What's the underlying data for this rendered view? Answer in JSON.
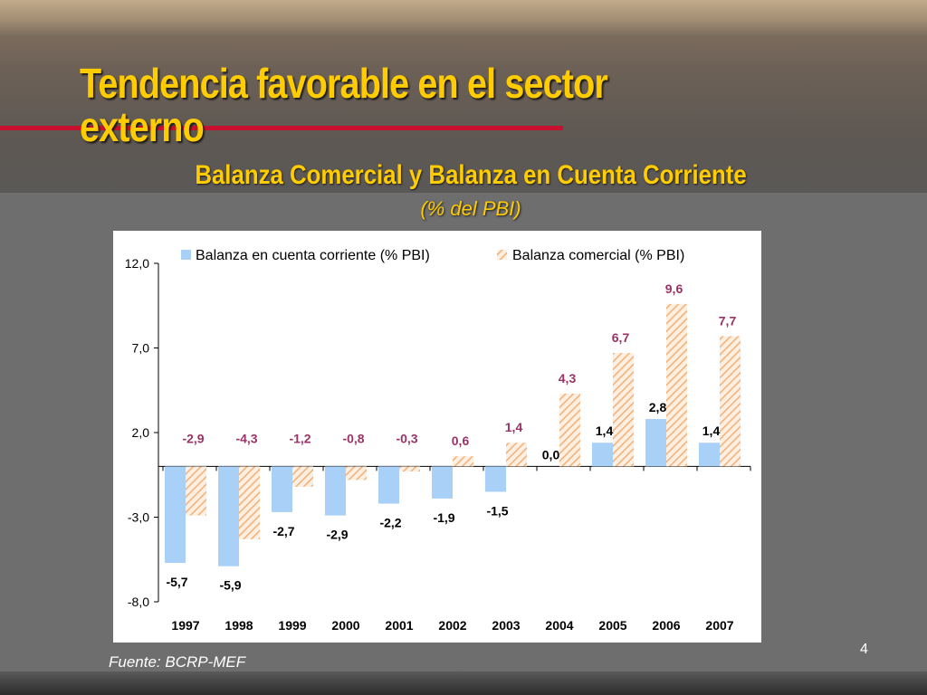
{
  "slide": {
    "title": "Tendencia favorable en el sector externo",
    "source": "Fuente: BCRP-MEF",
    "page_number": "4"
  },
  "colors": {
    "title": "#ffcc00",
    "accent_rule": "#c8102e",
    "series_current_account": "#a9d1f7",
    "series_trade_balance": "#f7c99a",
    "trade_label": "#993366"
  },
  "chart_data": {
    "type": "bar",
    "title": "Balanza Comercial y Balanza en Cuenta Corriente",
    "subtitle": "(% del PBI)",
    "categories": [
      "1997",
      "1998",
      "1999",
      "2000",
      "2001",
      "2002",
      "2003",
      "2004",
      "2005",
      "2006",
      "2007"
    ],
    "series": [
      {
        "name": "Balanza en cuenta corriente (% PBI)",
        "values": [
          -5.7,
          -5.9,
          -2.7,
          -2.9,
          -2.2,
          -1.9,
          -1.5,
          0.0,
          1.4,
          2.8,
          1.4
        ],
        "labels": [
          "-5,7",
          "-5,9",
          "-2,7",
          "-2,9",
          "-2,2",
          "-1,9",
          "-1,5",
          "0,0",
          "1,4",
          "2,8",
          "1,4"
        ]
      },
      {
        "name": "Balanza comercial (% PBI)",
        "values": [
          -2.9,
          -4.3,
          -1.2,
          -0.8,
          -0.3,
          0.6,
          1.4,
          4.3,
          6.7,
          9.6,
          7.7
        ],
        "labels": [
          "-2,9",
          "-4,3",
          "-1,2",
          "-0,8",
          "-0,3",
          "0,6",
          "1,4",
          "4,3",
          "6,7",
          "9,6",
          "7,7"
        ]
      }
    ],
    "ylim": [
      -8.0,
      12.0
    ],
    "yticks": [
      12.0,
      7.0,
      2.0,
      -3.0,
      -8.0
    ],
    "ytick_labels": [
      "12,0",
      "7,0",
      "2,0",
      "-3,0",
      "-8,0"
    ],
    "grid": false,
    "legend": "top"
  }
}
